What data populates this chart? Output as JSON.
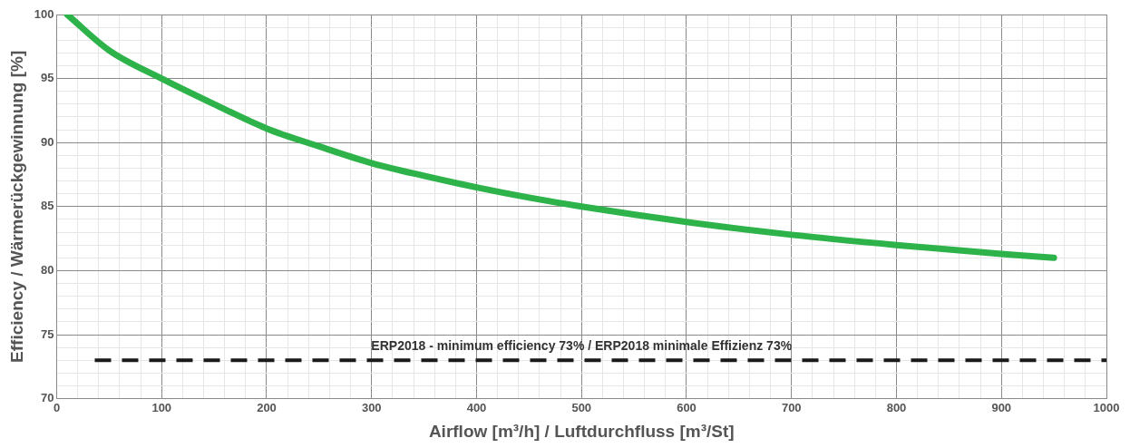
{
  "chart_data": {
    "type": "line",
    "xlabel": "Airflow [m³/h] / Luftdurchfluss [m³/St]",
    "ylabel": "Efficiency / Wärmerückgewinnung [%]",
    "series": [
      {
        "color": "#2db34a",
        "x": [
          10,
          50,
          100,
          150,
          200,
          250,
          300,
          350,
          400,
          450,
          500,
          600,
          700,
          800,
          900,
          950
        ],
        "values": [
          100,
          97.2,
          95,
          93,
          91.1,
          89.7,
          88.4,
          87.4,
          86.5,
          85.7,
          85,
          83.8,
          82.8,
          82,
          81.3,
          81
        ]
      }
    ],
    "xlim": [
      0,
      1000
    ],
    "xticks": [
      0,
      {
        "value": 20,
        "label": null
      },
      {
        "value": 40,
        "label": null
      },
      {
        "value": 60,
        "label": null
      },
      {
        "value": 80,
        "label": null
      },
      100,
      {
        "value": 120,
        "label": null
      },
      {
        "value": 140,
        "label": null
      },
      {
        "value": 160,
        "label": null
      },
      {
        "value": 180,
        "label": null
      },
      200,
      {
        "value": 220,
        "label": null
      },
      {
        "value": 240,
        "label": null
      },
      {
        "value": 260,
        "label": null
      },
      {
        "value": 280,
        "label": null
      },
      300,
      {
        "value": 320,
        "label": null
      },
      {
        "value": 340,
        "label": null
      },
      {
        "value": 360,
        "label": null
      },
      {
        "value": 380,
        "label": null
      },
      400,
      {
        "value": 420,
        "label": null
      },
      {
        "value": 440,
        "label": null
      },
      {
        "value": 460,
        "label": null
      },
      {
        "value": 480,
        "label": null
      },
      500,
      {
        "value": 520,
        "label": null
      },
      {
        "value": 540,
        "label": null
      },
      {
        "value": 560,
        "label": null
      },
      {
        "value": 580,
        "label": null
      },
      600,
      {
        "value": 620,
        "label": null
      },
      {
        "value": 640,
        "label": null
      },
      {
        "value": 660,
        "label": null
      },
      {
        "value": 680,
        "label": null
      },
      700,
      {
        "value": 720,
        "label": null
      },
      {
        "value": 740,
        "label": null
      },
      {
        "value": 760,
        "label": null
      },
      {
        "value": 780,
        "label": null
      },
      800,
      {
        "value": 820,
        "label": null
      },
      {
        "value": 840,
        "label": null
      },
      {
        "value": 860,
        "label": null
      },
      {
        "value": 880,
        "label": null
      },
      900,
      {
        "value": 920,
        "label": null
      },
      {
        "value": 940,
        "label": null
      },
      {
        "value": 960,
        "label": null
      },
      {
        "value": 980,
        "label": null
      },
      1000
    ],
    "ylim": [
      70,
      100
    ],
    "yticks": [
      70,
      {
        "value": 71,
        "label": null
      },
      {
        "value": 72,
        "label": null
      },
      {
        "value": 73,
        "label": null
      },
      {
        "value": 74,
        "label": null
      },
      75,
      {
        "value": 76,
        "label": null
      },
      {
        "value": 77,
        "label": null
      },
      {
        "value": 78,
        "label": null
      },
      {
        "value": 79,
        "label": null
      },
      80,
      {
        "value": 81,
        "label": null
      },
      {
        "value": 82,
        "label": null
      },
      {
        "value": 83,
        "label": null
      },
      {
        "value": 84,
        "label": null
      },
      85,
      {
        "value": 86,
        "label": null
      },
      {
        "value": 87,
        "label": null
      },
      {
        "value": 88,
        "label": null
      },
      {
        "value": 89,
        "label": null
      },
      90,
      {
        "value": 91,
        "label": null
      },
      {
        "value": 92,
        "label": null
      },
      {
        "value": 93,
        "label": null
      },
      {
        "value": 94,
        "label": null
      },
      95,
      {
        "value": 96,
        "label": null
      },
      {
        "value": 97,
        "label": null
      },
      {
        "value": 98,
        "label": null
      },
      {
        "value": 99,
        "label": null
      },
      100
    ],
    "grid": true,
    "marker": "none",
    "line_style": "solid",
    "legend": false,
    "ref_lines": [
      {
        "axis": "y",
        "value": 73,
        "label": "ERP2018 - minimum efficiency 73% / ERP2018 minimale Effizienz 73%",
        "color": "#1a1a1a",
        "line_style": "dashed"
      }
    ]
  }
}
